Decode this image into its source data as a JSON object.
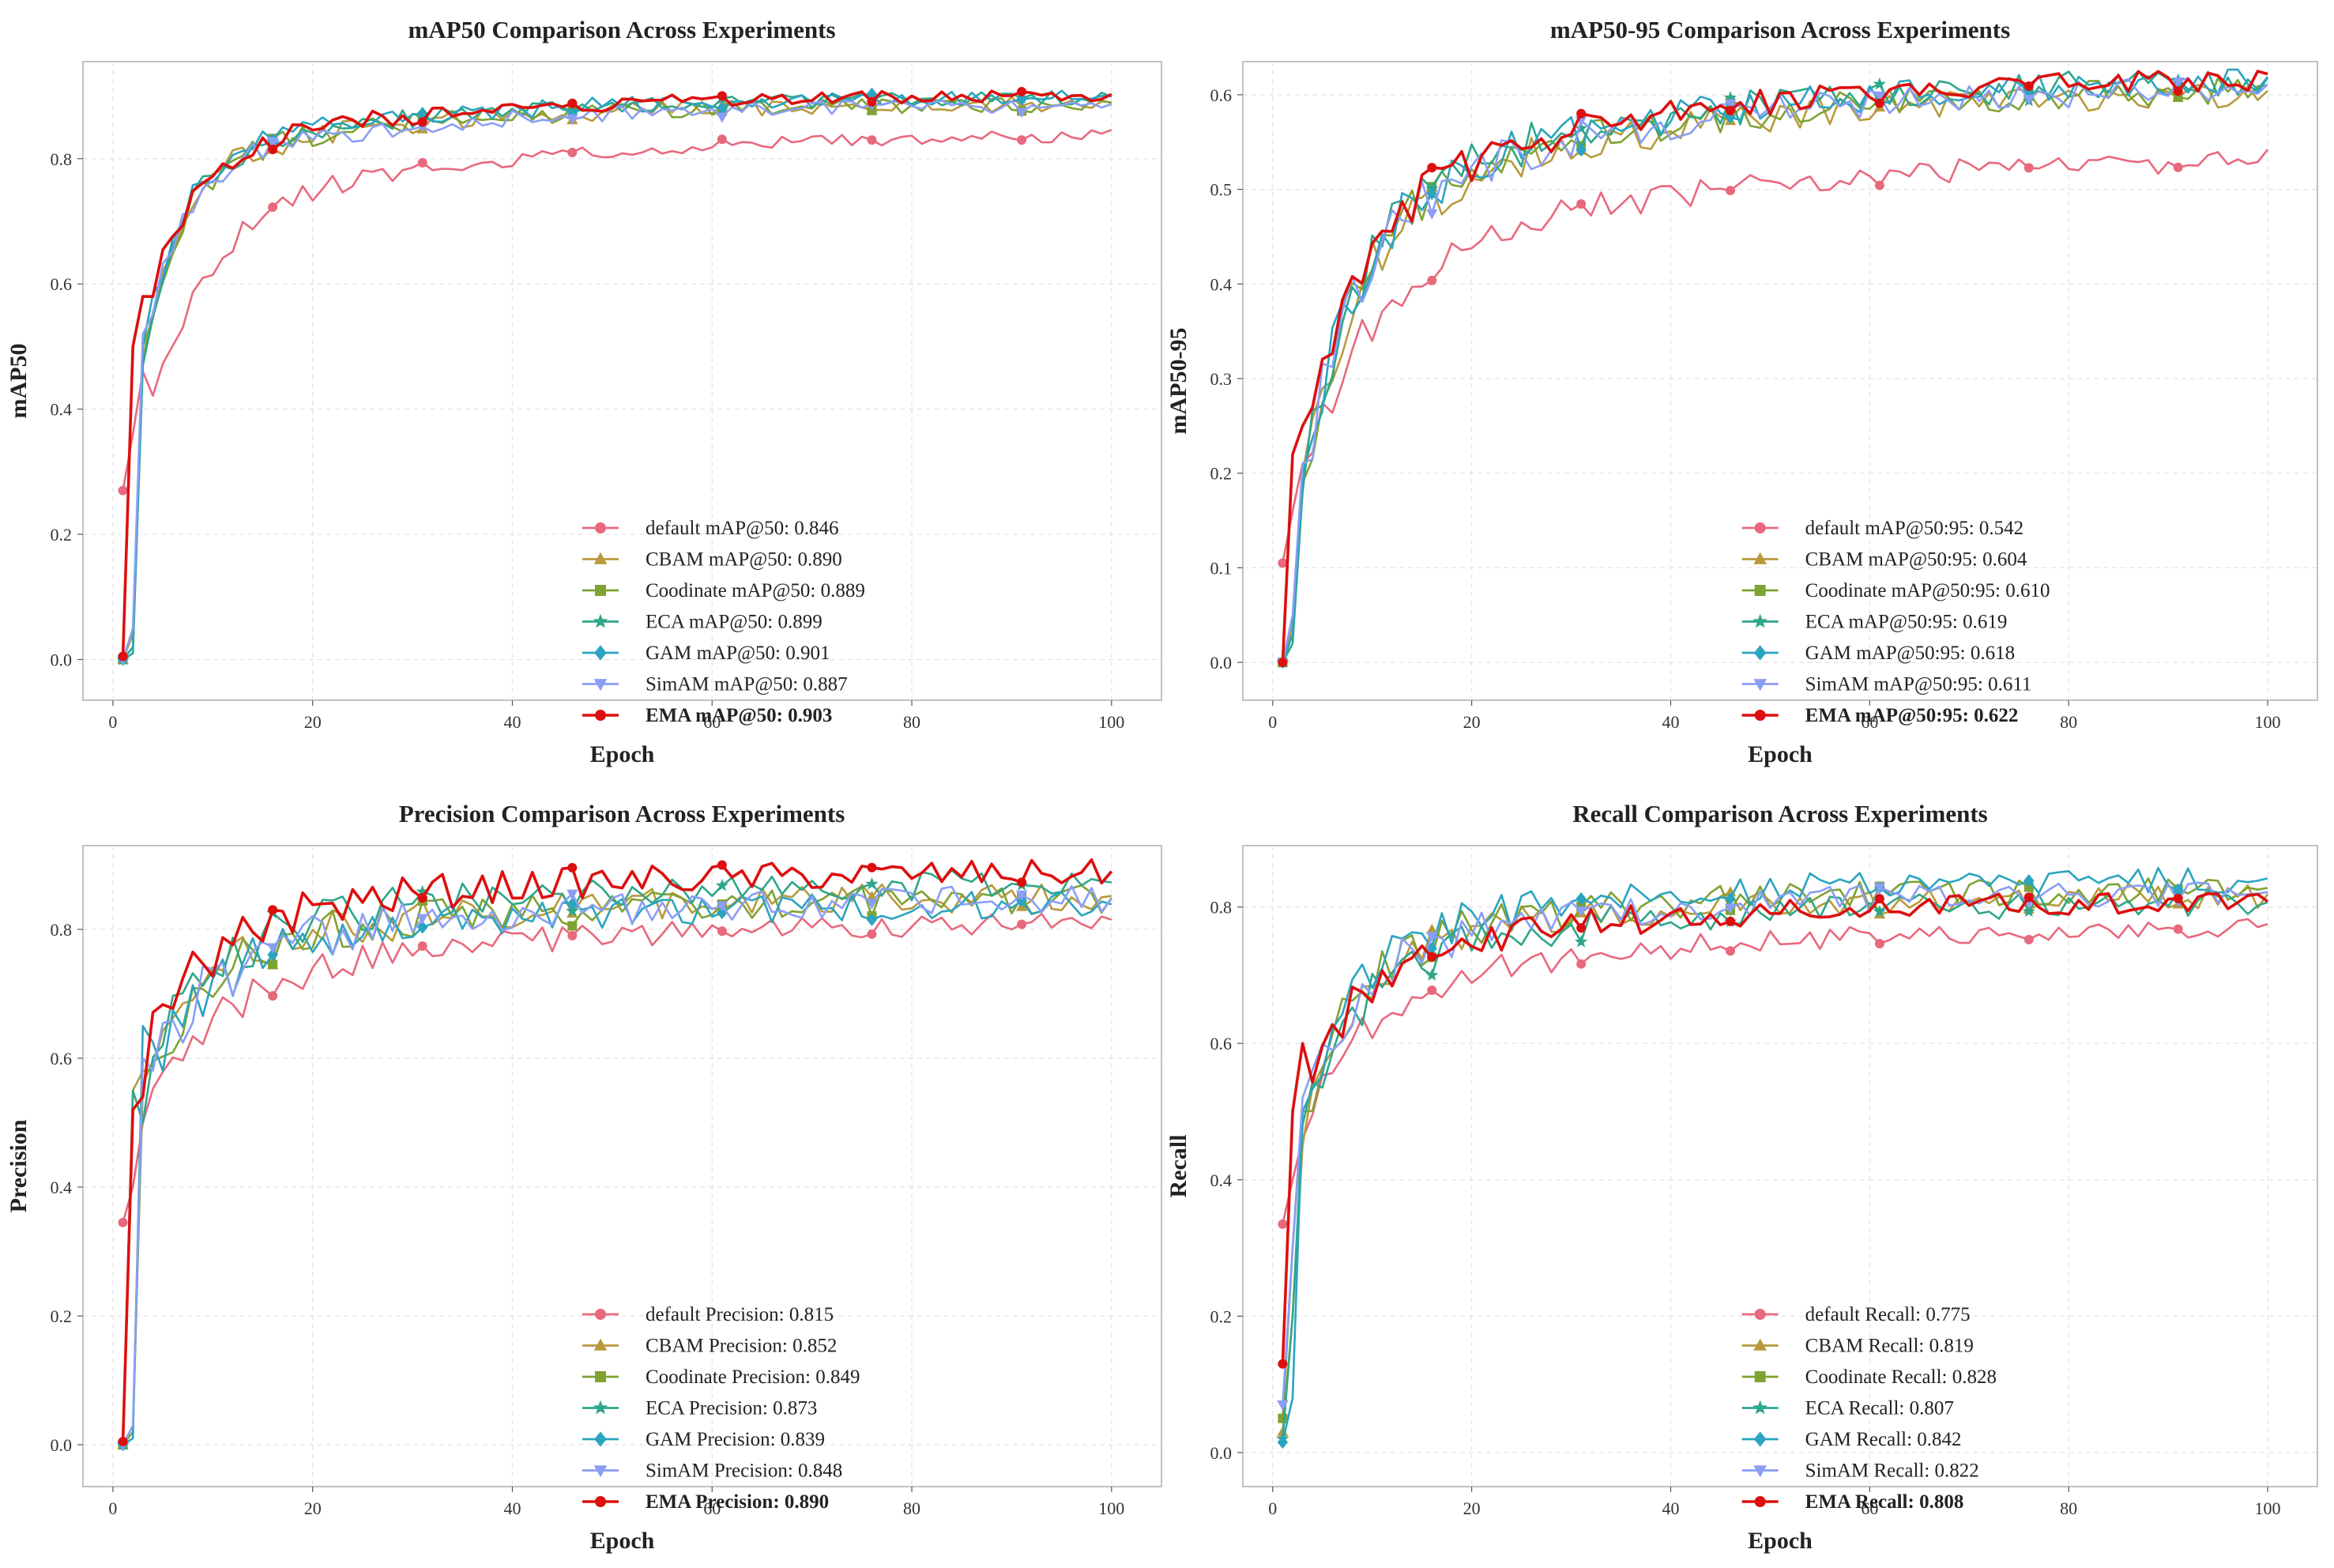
{
  "colors": {
    "default": "#e8697d",
    "CBAM": "#b89a3c",
    "Coodinate": "#7fa232",
    "ECA": "#2ea68a",
    "GAM": "#2aa4bf",
    "SimAM": "#8a9ef5",
    "EMA": "#dd0f0f"
  },
  "chart_data": [
    {
      "type": "line",
      "title": "mAP50 Comparison Across Experiments",
      "xlabel": "Epoch",
      "ylabel": "mAP50",
      "xlim": [
        -3,
        105
      ],
      "ylim": [
        -0.065,
        0.955
      ],
      "xticks": [
        0,
        20,
        40,
        60,
        80,
        100
      ],
      "yticks": [
        0.0,
        0.2,
        0.4,
        0.6,
        0.8
      ],
      "legend_position": "lower-right",
      "grid": true,
      "series": [
        {
          "name": "default",
          "key": "default",
          "marker": "circle",
          "legend": "default mAP@50: 0.846",
          "bold": false,
          "start": 0.27,
          "jump2": 0.36,
          "jump3": 0.46,
          "a1": 0.38,
          "k1": 0.18,
          "a2": 0.13,
          "k2": 0.028,
          "final": 0.846,
          "noise": 0.01,
          "seed": 11
        },
        {
          "name": "CBAM",
          "key": "CBAM",
          "marker": "triangle",
          "legend": "CBAM mAP@50: 0.890",
          "bold": false,
          "start": 0.0,
          "jump2": 0.04,
          "jump3": 0.5,
          "a1": 0.32,
          "k1": 0.28,
          "a2": 0.1,
          "k2": 0.04,
          "final": 0.89,
          "noise": 0.012,
          "seed": 23
        },
        {
          "name": "Coodinate",
          "key": "Coodinate",
          "marker": "square",
          "legend": "Coodinate mAP@50: 0.889",
          "bold": false,
          "start": 0.0,
          "jump2": 0.02,
          "jump3": 0.48,
          "a1": 0.33,
          "k1": 0.28,
          "a2": 0.1,
          "k2": 0.04,
          "final": 0.889,
          "noise": 0.012,
          "seed": 37
        },
        {
          "name": "ECA",
          "key": "ECA",
          "marker": "star",
          "legend": "ECA mAP@50: 0.899",
          "bold": false,
          "start": 0.0,
          "jump2": 0.01,
          "jump3": 0.47,
          "a1": 0.34,
          "k1": 0.28,
          "a2": 0.1,
          "k2": 0.04,
          "final": 0.899,
          "noise": 0.011,
          "seed": 41
        },
        {
          "name": "GAM",
          "key": "GAM",
          "marker": "diamond",
          "legend": "GAM mAP@50: 0.901",
          "bold": false,
          "start": 0.0,
          "jump2": 0.02,
          "jump3": 0.5,
          "a1": 0.32,
          "k1": 0.28,
          "a2": 0.1,
          "k2": 0.04,
          "final": 0.901,
          "noise": 0.011,
          "seed": 53
        },
        {
          "name": "SimAM",
          "key": "SimAM",
          "marker": "triangle-down",
          "legend": "SimAM mAP@50: 0.887",
          "bold": false,
          "start": 0.0,
          "jump2": 0.05,
          "jump3": 0.52,
          "a1": 0.32,
          "k1": 0.28,
          "a2": 0.1,
          "k2": 0.04,
          "final": 0.887,
          "noise": 0.011,
          "seed": 61
        },
        {
          "name": "EMA",
          "key": "EMA",
          "marker": "circle",
          "legend": "EMA mAP@50: 0.903",
          "bold": true,
          "start": 0.005,
          "jump2": 0.5,
          "jump3": 0.58,
          "a1": 0.26,
          "k1": 0.22,
          "a2": 0.1,
          "k2": 0.04,
          "final": 0.903,
          "noise": 0.01,
          "seed": 71
        }
      ]
    },
    {
      "type": "line",
      "title": "mAP50-95 Comparison Across Experiments",
      "xlabel": "Epoch",
      "ylabel": "mAP50-95",
      "xlim": [
        -3,
        105
      ],
      "ylim": [
        -0.04,
        0.635
      ],
      "xticks": [
        0,
        20,
        40,
        60,
        80,
        100
      ],
      "yticks": [
        0.0,
        0.1,
        0.2,
        0.3,
        0.4,
        0.5,
        0.6
      ],
      "legend_position": "lower-right",
      "grid": true,
      "series": [
        {
          "name": "default",
          "key": "default",
          "marker": "circle",
          "legend": "default mAP@50:95: 0.542",
          "bold": false,
          "start": 0.105,
          "jump2": 0.16,
          "jump3": 0.21,
          "a1": 0.23,
          "k1": 0.15,
          "a2": 0.12,
          "k2": 0.025,
          "final": 0.542,
          "noise": 0.012,
          "seed": 12
        },
        {
          "name": "CBAM",
          "key": "CBAM",
          "marker": "triangle",
          "legend": "CBAM mAP@50:95: 0.604",
          "bold": false,
          "start": 0.0,
          "jump2": 0.04,
          "jump3": 0.2,
          "a1": 0.27,
          "k1": 0.2,
          "a2": 0.15,
          "k2": 0.035,
          "final": 0.604,
          "noise": 0.014,
          "seed": 24
        },
        {
          "name": "Coodinate",
          "key": "Coodinate",
          "marker": "square",
          "legend": "Coodinate mAP@50:95: 0.610",
          "bold": false,
          "start": 0.0,
          "jump2": 0.03,
          "jump3": 0.19,
          "a1": 0.28,
          "k1": 0.2,
          "a2": 0.15,
          "k2": 0.035,
          "final": 0.61,
          "noise": 0.014,
          "seed": 38
        },
        {
          "name": "ECA",
          "key": "ECA",
          "marker": "star",
          "legend": "ECA mAP@50:95: 0.619",
          "bold": false,
          "start": 0.0,
          "jump2": 0.02,
          "jump3": 0.18,
          "a1": 0.29,
          "k1": 0.2,
          "a2": 0.15,
          "k2": 0.035,
          "final": 0.619,
          "noise": 0.015,
          "seed": 42
        },
        {
          "name": "GAM",
          "key": "GAM",
          "marker": "diamond",
          "legend": "GAM mAP@50:95: 0.618",
          "bold": false,
          "start": 0.0,
          "jump2": 0.03,
          "jump3": 0.2,
          "a1": 0.28,
          "k1": 0.2,
          "a2": 0.15,
          "k2": 0.035,
          "final": 0.618,
          "noise": 0.014,
          "seed": 54
        },
        {
          "name": "SimAM",
          "key": "SimAM",
          "marker": "triangle-down",
          "legend": "SimAM mAP@50:95: 0.611",
          "bold": false,
          "start": 0.0,
          "jump2": 0.05,
          "jump3": 0.21,
          "a1": 0.27,
          "k1": 0.2,
          "a2": 0.15,
          "k2": 0.035,
          "final": 0.611,
          "noise": 0.014,
          "seed": 62
        },
        {
          "name": "EMA",
          "key": "EMA",
          "marker": "circle",
          "legend": "EMA mAP@50:95: 0.622",
          "bold": true,
          "start": 0.0,
          "jump2": 0.22,
          "jump3": 0.25,
          "a1": 0.25,
          "k1": 0.18,
          "a2": 0.15,
          "k2": 0.035,
          "final": 0.622,
          "noise": 0.012,
          "seed": 72
        }
      ]
    },
    {
      "type": "line",
      "title": "Precision Comparison Across Experiments",
      "xlabel": "Epoch",
      "ylabel": "Precision",
      "xlim": [
        -3,
        105
      ],
      "ylim": [
        -0.065,
        0.93
      ],
      "xticks": [
        0,
        20,
        40,
        60,
        80,
        100
      ],
      "yticks": [
        0.0,
        0.2,
        0.4,
        0.6,
        0.8
      ],
      "legend_position": "lower-right",
      "grid": true,
      "series": [
        {
          "name": "default",
          "key": "default",
          "marker": "circle",
          "legend": "default Precision: 0.815",
          "bold": false,
          "start": 0.345,
          "jump2": 0.4,
          "jump3": 0.5,
          "a1": 0.22,
          "k1": 0.15,
          "a2": 0.1,
          "k2": 0.03,
          "final": 0.815,
          "noise": 0.016,
          "seed": 13
        },
        {
          "name": "CBAM",
          "key": "CBAM",
          "marker": "triangle",
          "legend": "CBAM Precision: 0.852",
          "bold": false,
          "start": 0.0,
          "jump2": 0.55,
          "jump3": 0.58,
          "a1": 0.18,
          "k1": 0.18,
          "a2": 0.1,
          "k2": 0.04,
          "final": 0.852,
          "noise": 0.022,
          "seed": 25
        },
        {
          "name": "Coodinate",
          "key": "Coodinate",
          "marker": "square",
          "legend": "Coodinate Precision: 0.849",
          "bold": false,
          "start": 0.0,
          "jump2": 0.02,
          "jump3": 0.56,
          "a1": 0.2,
          "k1": 0.18,
          "a2": 0.1,
          "k2": 0.04,
          "final": 0.849,
          "noise": 0.022,
          "seed": 39
        },
        {
          "name": "ECA",
          "key": "ECA",
          "marker": "star",
          "legend": "ECA Precision: 0.873",
          "bold": false,
          "start": 0.0,
          "jump2": 0.55,
          "jump3": 0.5,
          "a1": 0.2,
          "k1": 0.18,
          "a2": 0.1,
          "k2": 0.04,
          "final": 0.873,
          "noise": 0.022,
          "seed": 43
        },
        {
          "name": "GAM",
          "key": "GAM",
          "marker": "diamond",
          "legend": "GAM Precision: 0.839",
          "bold": false,
          "start": 0.0,
          "jump2": 0.01,
          "jump3": 0.65,
          "a1": 0.18,
          "k1": 0.18,
          "a2": 0.1,
          "k2": 0.04,
          "final": 0.839,
          "noise": 0.022,
          "seed": 55
        },
        {
          "name": "SimAM",
          "key": "SimAM",
          "marker": "triangle-down",
          "legend": "SimAM Precision: 0.848",
          "bold": false,
          "start": 0.0,
          "jump2": 0.03,
          "jump3": 0.6,
          "a1": 0.2,
          "k1": 0.18,
          "a2": 0.1,
          "k2": 0.04,
          "final": 0.848,
          "noise": 0.022,
          "seed": 63
        },
        {
          "name": "EMA",
          "key": "EMA",
          "marker": "circle",
          "legend": "EMA Precision: 0.890",
          "bold": true,
          "start": 0.005,
          "jump2": 0.52,
          "jump3": 0.54,
          "a1": 0.2,
          "k1": 0.2,
          "a2": 0.1,
          "k2": 0.04,
          "final": 0.89,
          "noise": 0.02,
          "seed": 73
        }
      ]
    },
    {
      "type": "line",
      "title": "Recall Comparison Across Experiments",
      "xlabel": "Epoch",
      "ylabel": "Recall",
      "xlim": [
        -3,
        105
      ],
      "ylim": [
        -0.05,
        0.89
      ],
      "xticks": [
        0,
        20,
        40,
        60,
        80,
        100
      ],
      "yticks": [
        0.0,
        0.2,
        0.4,
        0.6,
        0.8
      ],
      "legend_position": "lower-right",
      "grid": true,
      "series": [
        {
          "name": "default",
          "key": "default",
          "marker": "circle",
          "legend": "default Recall: 0.775",
          "bold": false,
          "start": 0.335,
          "jump2": 0.4,
          "jump3": 0.46,
          "a1": 0.2,
          "k1": 0.16,
          "a2": 0.1,
          "k2": 0.03,
          "final": 0.775,
          "noise": 0.014,
          "seed": 14
        },
        {
          "name": "CBAM",
          "key": "CBAM",
          "marker": "triangle",
          "legend": "CBAM Recall: 0.819",
          "bold": false,
          "start": 0.03,
          "jump2": 0.2,
          "jump3": 0.45,
          "a1": 0.25,
          "k1": 0.2,
          "a2": 0.1,
          "k2": 0.04,
          "final": 0.819,
          "noise": 0.018,
          "seed": 26
        },
        {
          "name": "Coodinate",
          "key": "Coodinate",
          "marker": "square",
          "legend": "Coodinate Recall: 0.828",
          "bold": false,
          "start": 0.05,
          "jump2": 0.3,
          "jump3": 0.5,
          "a1": 0.24,
          "k1": 0.2,
          "a2": 0.1,
          "k2": 0.04,
          "final": 0.828,
          "noise": 0.018,
          "seed": 40
        },
        {
          "name": "ECA",
          "key": "ECA",
          "marker": "star",
          "legend": "ECA Recall: 0.807",
          "bold": false,
          "start": 0.02,
          "jump2": 0.2,
          "jump3": 0.48,
          "a1": 0.24,
          "k1": 0.2,
          "a2": 0.1,
          "k2": 0.04,
          "final": 0.807,
          "noise": 0.018,
          "seed": 44
        },
        {
          "name": "GAM",
          "key": "GAM",
          "marker": "diamond",
          "legend": "GAM Recall: 0.842",
          "bold": false,
          "start": 0.015,
          "jump2": 0.08,
          "jump3": 0.5,
          "a1": 0.24,
          "k1": 0.2,
          "a2": 0.1,
          "k2": 0.04,
          "final": 0.842,
          "noise": 0.018,
          "seed": 56
        },
        {
          "name": "SimAM",
          "key": "SimAM",
          "marker": "triangle-down",
          "legend": "SimAM Recall: 0.822",
          "bold": false,
          "start": 0.07,
          "jump2": 0.3,
          "jump3": 0.52,
          "a1": 0.24,
          "k1": 0.2,
          "a2": 0.1,
          "k2": 0.04,
          "final": 0.822,
          "noise": 0.018,
          "seed": 64
        },
        {
          "name": "EMA",
          "key": "EMA",
          "marker": "circle",
          "legend": "EMA Recall: 0.808",
          "bold": true,
          "start": 0.13,
          "jump2": 0.5,
          "jump3": 0.6,
          "a1": 0.2,
          "k1": 0.2,
          "a2": 0.1,
          "k2": 0.04,
          "final": 0.808,
          "noise": 0.016,
          "seed": 74
        }
      ]
    }
  ]
}
